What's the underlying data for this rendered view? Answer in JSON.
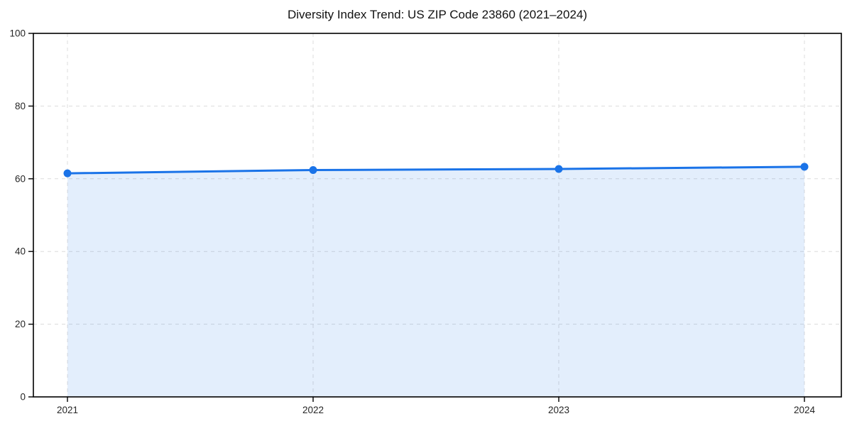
{
  "page": {
    "title": "Diversity Index Trend: US ZIP Code 23860 (2021–2024)"
  },
  "chart_data": {
    "type": "area",
    "title": "Diversity Index Trend: US ZIP Code 23860 (2021–2024)",
    "categories": [
      "2021",
      "2022",
      "2023",
      "2024"
    ],
    "series": [
      {
        "name": "Diversity Index",
        "values": [
          61.5,
          62.4,
          62.7,
          63.3
        ]
      }
    ],
    "xlabel": "",
    "ylabel": "",
    "ylim": [
      0,
      100
    ],
    "yticks": [
      0,
      20,
      40,
      60,
      80,
      100
    ],
    "grid": "dashed",
    "legend_position": "none",
    "marker": "circle",
    "colors": {
      "line": "#1a73e8",
      "marker": "#1a73e8",
      "fill": "rgba(26,115,232,0.12)",
      "grid": "#dcdcdc",
      "axis": "#000000",
      "tick_text": "#262626",
      "title_text": "#111111",
      "background": "#ffffff"
    }
  }
}
